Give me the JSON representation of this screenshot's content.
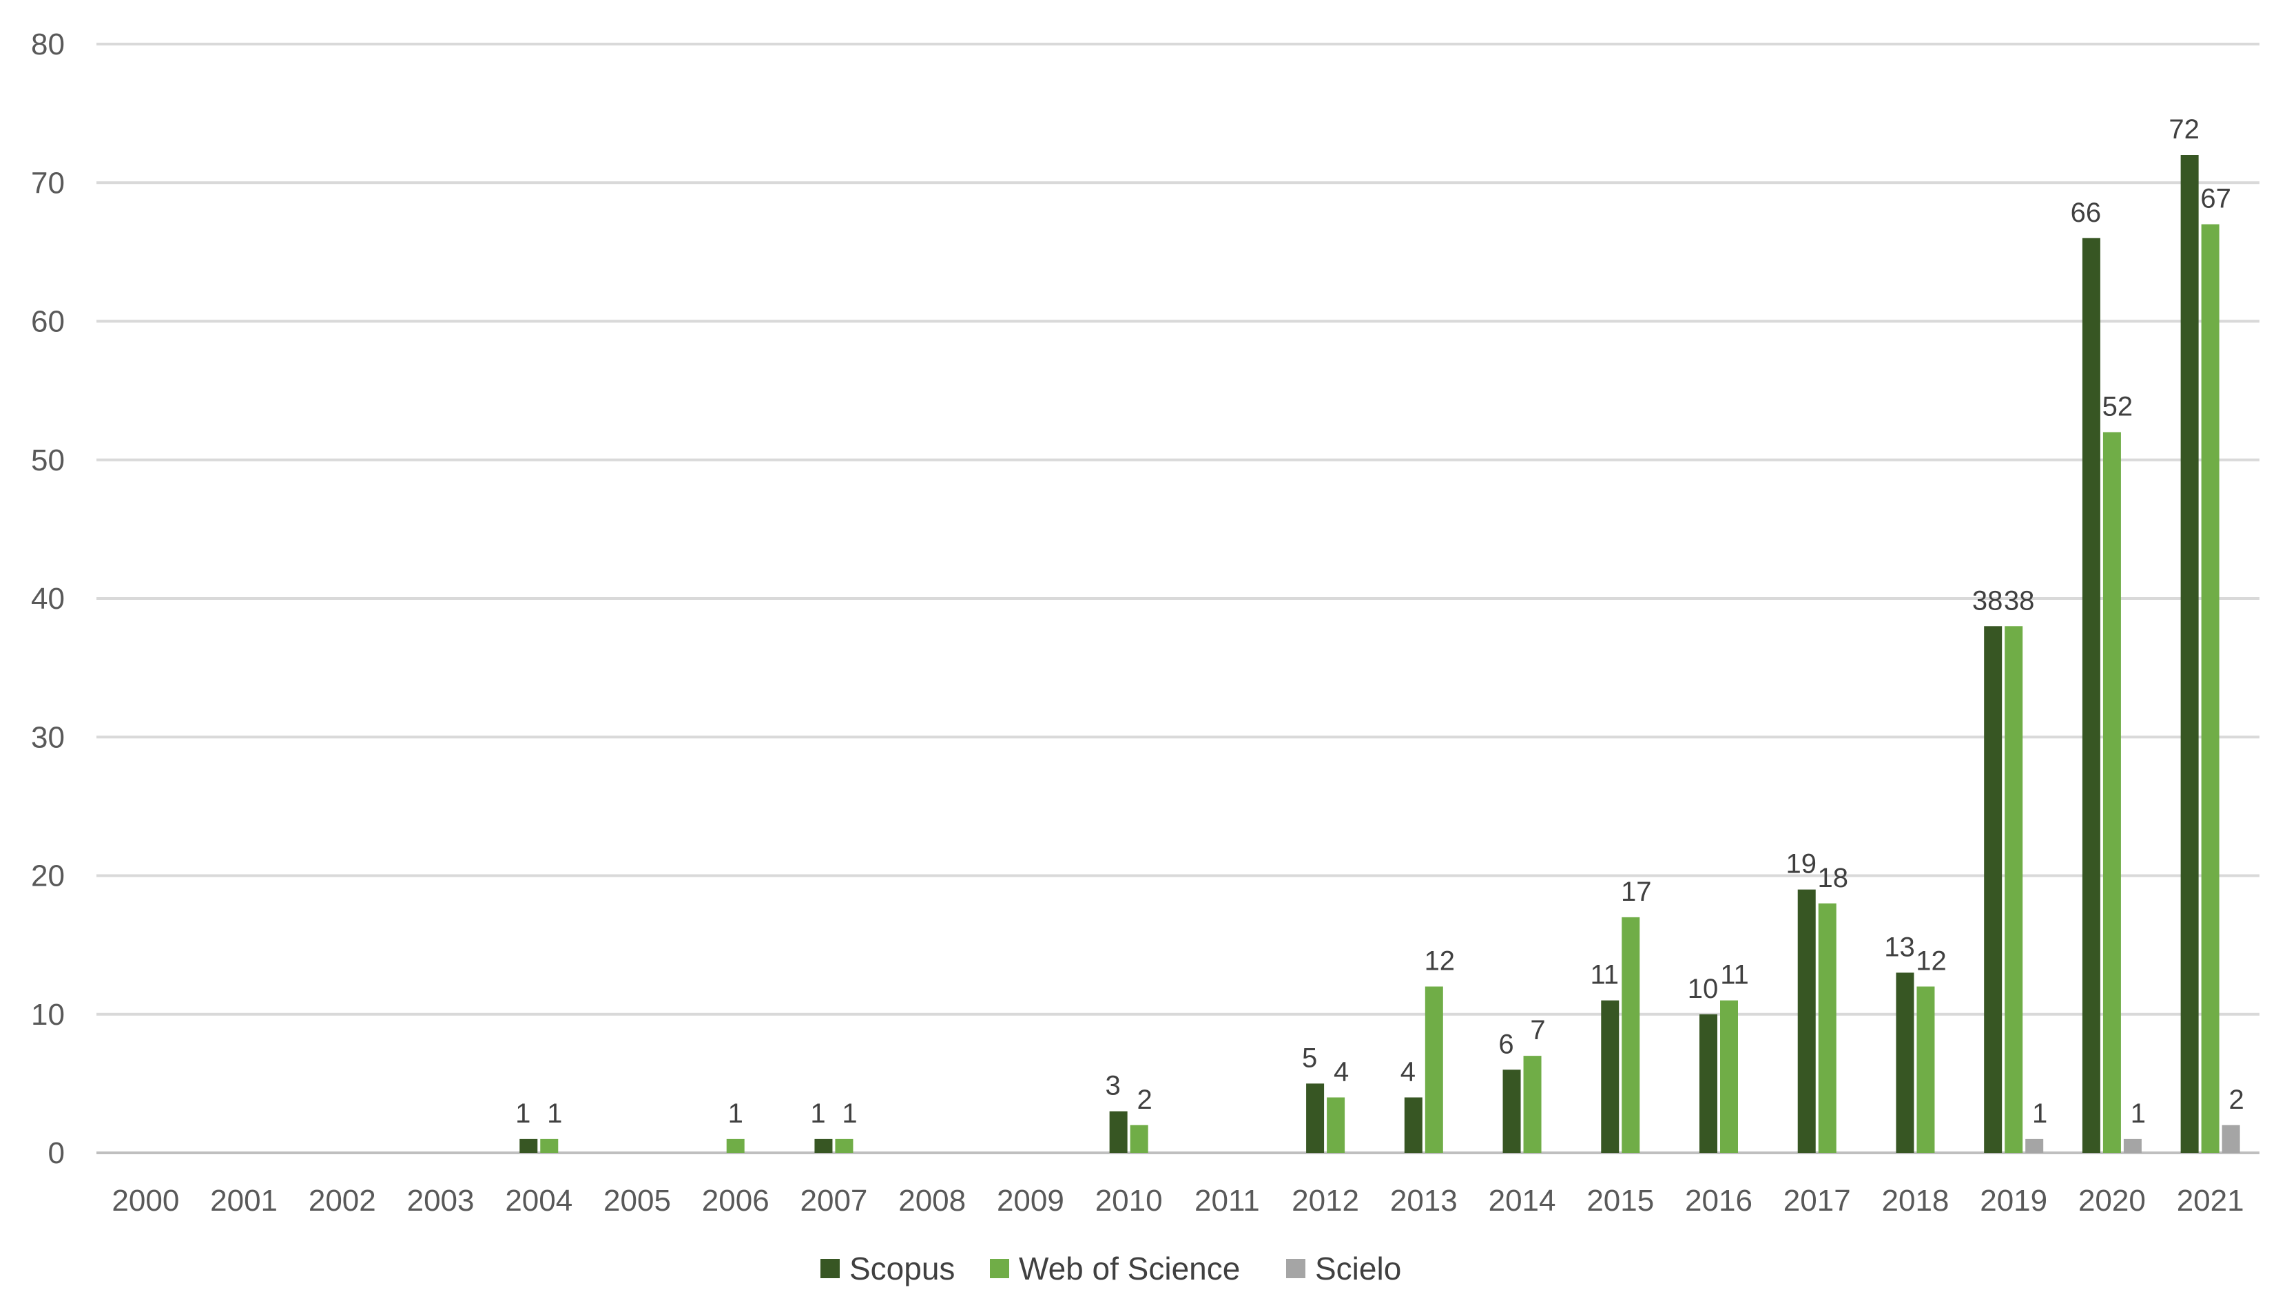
{
  "chart_data": {
    "type": "bar",
    "title": "",
    "xlabel": "",
    "ylabel": "",
    "ylim": [
      0,
      80
    ],
    "yticks": [
      0,
      10,
      20,
      30,
      40,
      50,
      60,
      70,
      80
    ],
    "grid": "horizontal",
    "legend_position": "bottom",
    "categories": [
      "2000",
      "2001",
      "2002",
      "2003",
      "2004",
      "2005",
      "2006",
      "2007",
      "2008",
      "2009",
      "2010",
      "2011",
      "2012",
      "2013",
      "2014",
      "2015",
      "2016",
      "2017",
      "2018",
      "2019",
      "2020",
      "2021"
    ],
    "series": [
      {
        "name": "Scopus",
        "color": "#375623",
        "values": [
          0,
          0,
          0,
          0,
          1,
          0,
          0,
          1,
          0,
          0,
          3,
          0,
          5,
          4,
          6,
          11,
          10,
          19,
          13,
          38,
          66,
          72
        ]
      },
      {
        "name": "Web of Science",
        "color": "#70AD47",
        "values": [
          0,
          0,
          0,
          0,
          1,
          0,
          1,
          1,
          0,
          0,
          2,
          0,
          4,
          12,
          7,
          17,
          11,
          18,
          12,
          38,
          52,
          67
        ]
      },
      {
        "name": "Scielo",
        "color": "#A5A5A5",
        "values": [
          0,
          0,
          0,
          0,
          0,
          0,
          0,
          0,
          0,
          0,
          0,
          0,
          0,
          0,
          0,
          0,
          0,
          0,
          0,
          1,
          1,
          2
        ]
      }
    ]
  }
}
